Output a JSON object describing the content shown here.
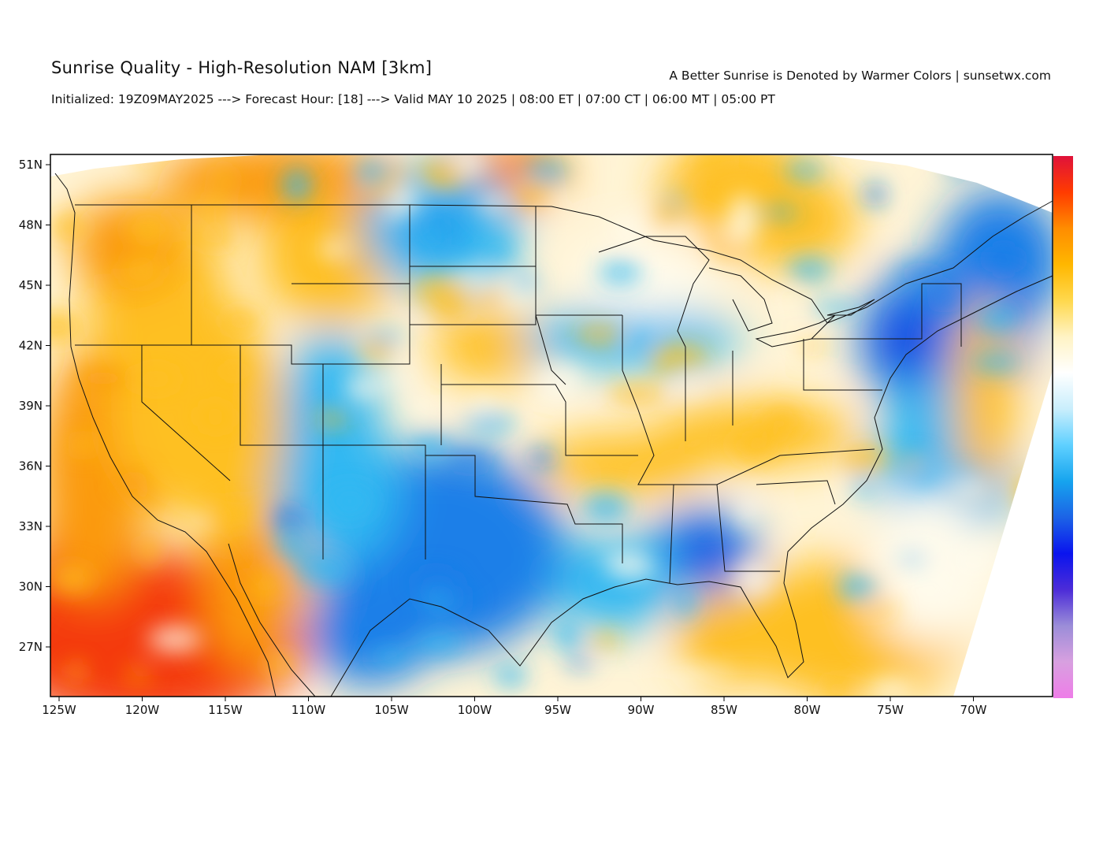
{
  "header": {
    "title": "Sunrise Quality - High-Resolution NAM [3km]",
    "subtitle": "A Better Sunrise is Denoted by Warmer Colors | sunsetwx.com",
    "init_line": "Initialized: 19Z09MAY2025 ---> Forecast Hour: [18] ---> Valid MAY 10 2025 | 08:00 ET | 07:00 CT | 06:00 MT | 05:00 PT"
  },
  "map": {
    "lon_ticks": [
      "125W",
      "120W",
      "115W",
      "110W",
      "105W",
      "100W",
      "95W",
      "90W",
      "85W",
      "80W",
      "75W",
      "70W"
    ],
    "lat_ticks": [
      "51N",
      "48N",
      "45N",
      "42N",
      "39N",
      "36N",
      "33N",
      "30N",
      "27N"
    ],
    "colorbar": [
      "#e0123a",
      "#ff3b00",
      "#ff8c00",
      "#ffb700",
      "#ffd84d",
      "#fff3c4",
      "#ffffff",
      "#c9eefc",
      "#5fd0ff",
      "#16a4ee",
      "#1c63e6",
      "#0a14ee",
      "#4c2cd8",
      "#9b8dd8",
      "#d8a0e0",
      "#ee7de8"
    ],
    "palette": {
      "red": "#f43a10",
      "orange": "#fb9a10",
      "yellow": "#fec020",
      "white": "#fffbec",
      "cyan": "#32b8f2",
      "blue": "#1e7fe8",
      "deep_blue": "#1f3fe2"
    }
  }
}
